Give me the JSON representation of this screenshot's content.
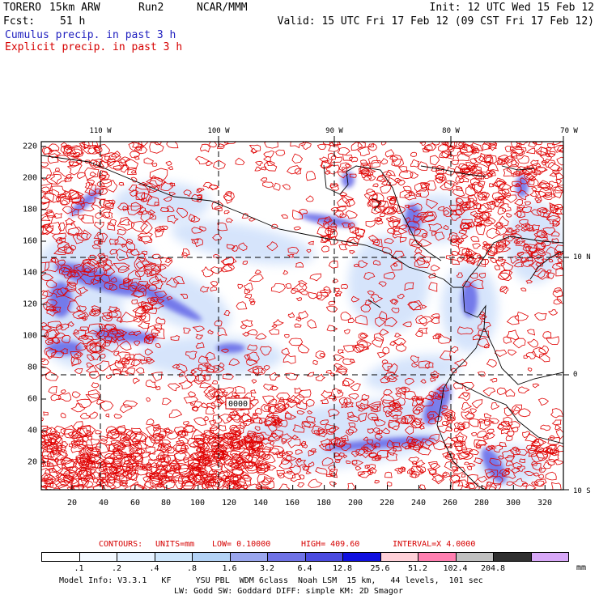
{
  "header": {
    "model": "TORERO",
    "grid": "15km ARW",
    "run": "Run2",
    "org": "NCAR/MMM",
    "init": "Init: 12 UTC Wed 15 Feb 12",
    "fcst_label": "Fcst:",
    "fcst_value": "51 h",
    "valid": "Valid: 15 UTC Fri 17 Feb 12 (09 CST Fri 17 Feb 12)"
  },
  "legend": {
    "cumulus": "Cumulus precip. in past 3 h",
    "explicit": "Explicit precip. in past 3 h"
  },
  "map": {
    "lon_labels": [
      "110 W",
      "100 W",
      "90 W",
      "80 W",
      "70 W"
    ],
    "lat_labels": [
      "10 N",
      "0",
      "10 S"
    ],
    "y_ticks": [
      "220",
      "200",
      "180",
      "160",
      "140",
      "120",
      "100",
      "80",
      "60",
      "40",
      "20"
    ],
    "x_ticks": [
      "20",
      "40",
      "60",
      "80",
      "100",
      "120",
      "140",
      "160",
      "180",
      "200",
      "220",
      "240",
      "260",
      "280",
      "300",
      "320"
    ],
    "annotation": "0000",
    "colors": {
      "cumulus": "#2b2bd8",
      "explicit": "#e00000",
      "grid": "#000000"
    }
  },
  "contours": {
    "label": "CONTOURS:",
    "units": "UNITS=mm",
    "low": "LOW= 0.10000",
    "high": "HIGH= 409.60",
    "interval": "INTERVAL=X 4.0000"
  },
  "colorbar": {
    "labels": [
      ".1",
      ".2",
      ".4",
      ".8",
      "1.6",
      "3.2",
      "6.4",
      "12.8",
      "25.6",
      "51.2",
      "102.4",
      "204.8"
    ],
    "unit": "mm",
    "colors": [
      "#ffffff",
      "#f4f9ff",
      "#e6f2ff",
      "#cfe6fb",
      "#b3d2f5",
      "#9aa6ee",
      "#6f72e6",
      "#4a4ae0",
      "#1010e0",
      "#ffd0d8",
      "#ff7fb0",
      "#c0c0c0",
      "#303030",
      "#d8a8f8"
    ]
  },
  "footer": {
    "line1": "Model Info: V3.3.1   KF     YSU PBL  WDM 6class  Noah LSM  15 km,   44 levels,  101 sec",
    "line2": "LW: Godd SW: Goddard DIFF: simple KM: 2D Smagor"
  }
}
